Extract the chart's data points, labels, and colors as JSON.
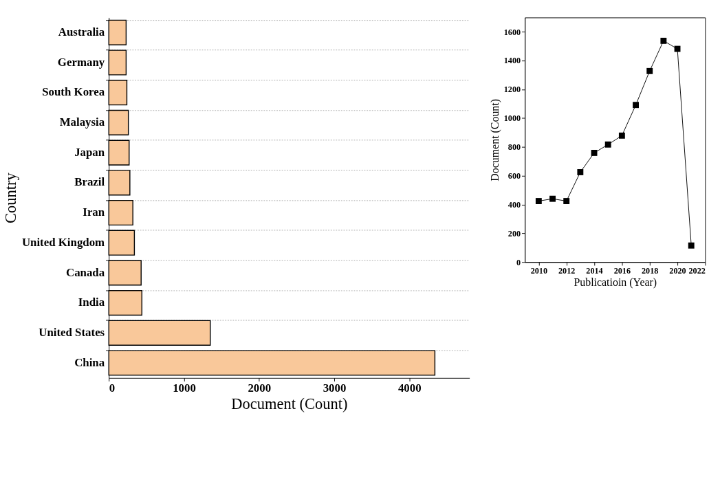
{
  "chart_data": [
    {
      "type": "bar",
      "orientation": "horizontal",
      "xlabel": "Document (Count)",
      "ylabel": "Country",
      "categories": [
        "Australia",
        "Germany",
        "South Korea",
        "Malaysia",
        "Japan",
        "Brazil",
        "Iran",
        "United Kingdom",
        "Canada",
        "India",
        "United States",
        "China"
      ],
      "values": [
        230,
        230,
        240,
        260,
        270,
        280,
        320,
        340,
        430,
        440,
        1350,
        4340
      ],
      "color": "#f9c89a",
      "xlim": [
        0,
        4800
      ],
      "xticks": [
        0,
        1000,
        2000,
        3000,
        4000
      ],
      "grid": "y"
    },
    {
      "type": "line",
      "xlabel": "Publicatioin (Year)",
      "ylabel": "Document (Count)",
      "x": [
        2010,
        2011,
        2012,
        2013,
        2014,
        2015,
        2016,
        2017,
        2018,
        2019,
        2020,
        2021
      ],
      "values": [
        424,
        440,
        424,
        625,
        759,
        817,
        879,
        1092,
        1328,
        1538,
        1482,
        115
      ],
      "color": "#000000",
      "marker": "square",
      "line_style": "solid",
      "xlim": [
        2009,
        2022
      ],
      "xticks": [
        2010,
        2012,
        2014,
        2016,
        2018,
        2020,
        2022
      ],
      "ylim": [
        0,
        1700
      ],
      "yticks": [
        0,
        200,
        400,
        600,
        800,
        1000,
        1200,
        1400,
        1600
      ],
      "grid": false
    }
  ]
}
